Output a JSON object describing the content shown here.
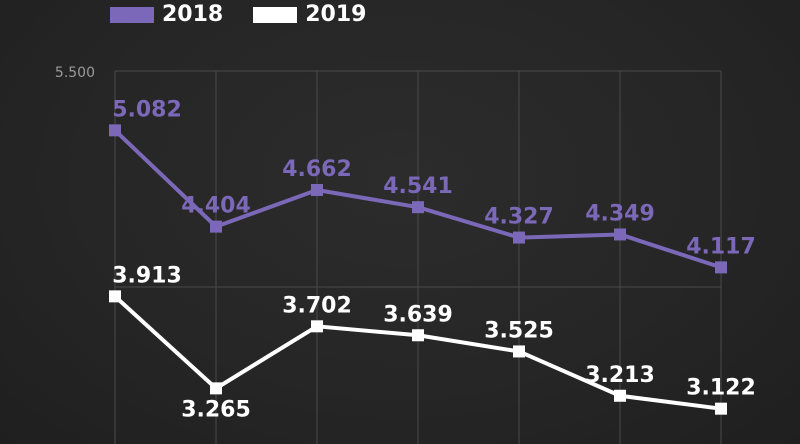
{
  "legend": {
    "items": [
      {
        "label": "2018",
        "color": "#7b68b8"
      },
      {
        "label": "2019",
        "color": "#ffffff"
      }
    ]
  },
  "chart_data": {
    "type": "line",
    "x": [
      1,
      2,
      3,
      4,
      5,
      6,
      7
    ],
    "ylim": [
      2.8,
      5.5
    ],
    "yticks": [
      5.5
    ],
    "ytick_labels": [
      "5.500"
    ],
    "grid": true,
    "legend_position": "top-left",
    "series": [
      {
        "name": "2018",
        "color": "#7b68b8",
        "values": [
          5.082,
          4.404,
          4.662,
          4.541,
          4.327,
          4.349,
          4.117
        ],
        "labels": [
          "5.082",
          "4.404",
          "4.662",
          "4.541",
          "4.327",
          "4.349",
          "4.117"
        ]
      },
      {
        "name": "2019",
        "color": "#ffffff",
        "values": [
          3.913,
          3.265,
          3.702,
          3.639,
          3.525,
          3.213,
          3.122
        ],
        "labels": [
          "3.913",
          "3.265",
          "3.702",
          "3.639",
          "3.525",
          "3.213",
          "3.122"
        ]
      }
    ]
  }
}
